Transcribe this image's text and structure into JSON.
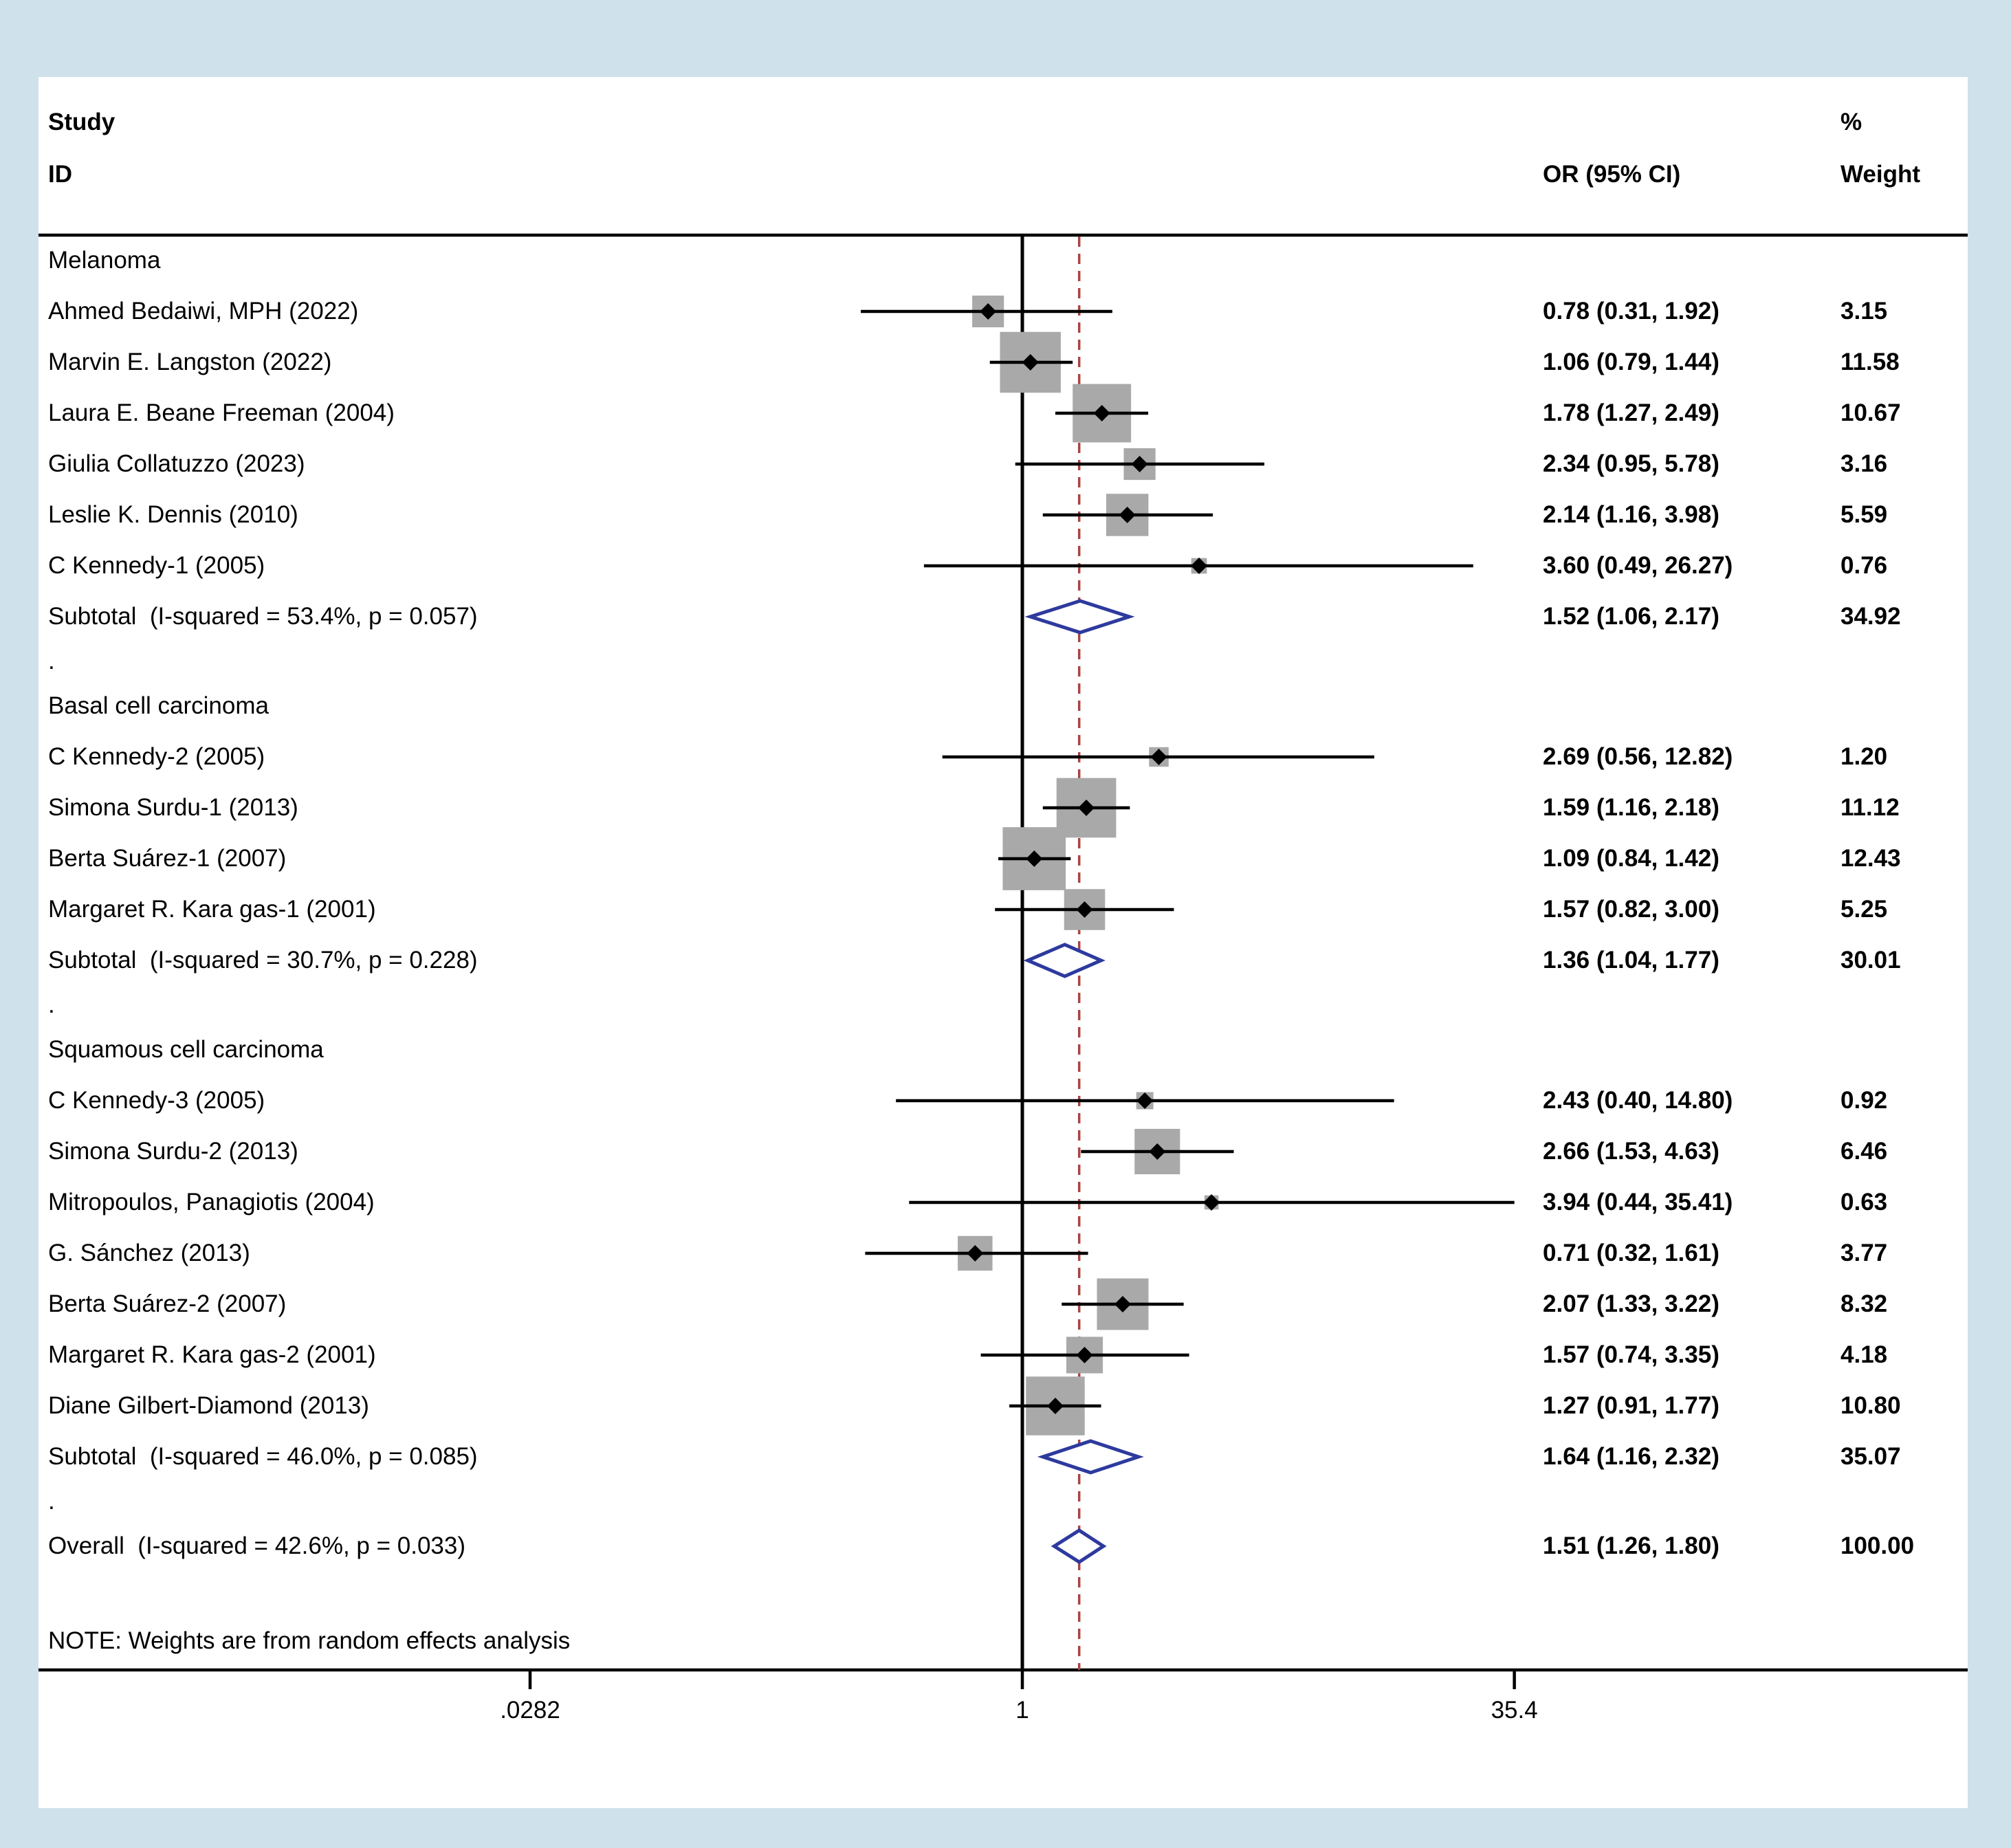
{
  "colors": {
    "background": "#cfe1ea",
    "panel": "#ffffff",
    "text": "#000000",
    "ci_line": "#000000",
    "weight_square": "#a9a9a9",
    "point_marker": "#000000",
    "pooled_diamond": "#2d3a9e",
    "null_line": "#000000",
    "dashed_line": "#a94442"
  },
  "header": {
    "study_line1": "Study",
    "study_line2": "ID",
    "or": "OR (95% CI)",
    "weight_line1": "%",
    "weight_line2": "Weight"
  },
  "separator_label": ".",
  "note": "NOTE: Weights are from random effects analysis",
  "chart_data": {
    "type": "forest",
    "x_scale": "log",
    "effect_measure": "OR",
    "null_line_value": 1,
    "dashed_line_value": 1.51,
    "x_ticks": [
      {
        "label": ".0282",
        "value": 0.0282
      },
      {
        "label": "1",
        "value": 1
      },
      {
        "label": "35.4",
        "value": 35.4
      }
    ],
    "groups": [
      {
        "name": "Melanoma",
        "studies": [
          {
            "label": "Ahmed Bedaiwi, MPH (2022)",
            "or": 0.78,
            "ci_low": 0.31,
            "ci_high": 1.92,
            "or_text": "0.78 (0.31, 1.92)",
            "weight": 3.15,
            "weight_text": "3.15"
          },
          {
            "label": "Marvin E. Langston (2022)",
            "or": 1.06,
            "ci_low": 0.79,
            "ci_high": 1.44,
            "or_text": "1.06 (0.79, 1.44)",
            "weight": 11.58,
            "weight_text": "11.58"
          },
          {
            "label": "Laura E. Beane Freeman (2004)",
            "or": 1.78,
            "ci_low": 1.27,
            "ci_high": 2.49,
            "or_text": "1.78 (1.27, 2.49)",
            "weight": 10.67,
            "weight_text": "10.67"
          },
          {
            "label": "Giulia Collatuzzo (2023)",
            "or": 2.34,
            "ci_low": 0.95,
            "ci_high": 5.78,
            "or_text": "2.34 (0.95, 5.78)",
            "weight": 3.16,
            "weight_text": "3.16"
          },
          {
            "label": "Leslie K. Dennis (2010)",
            "or": 2.14,
            "ci_low": 1.16,
            "ci_high": 3.98,
            "or_text": "2.14 (1.16, 3.98)",
            "weight": 5.59,
            "weight_text": "5.59"
          },
          {
            "label": "C Kennedy-1 (2005)",
            "or": 3.6,
            "ci_low": 0.49,
            "ci_high": 26.27,
            "or_text": "3.60 (0.49, 26.27)",
            "weight": 0.76,
            "weight_text": "0.76"
          }
        ],
        "subtotal": {
          "label": "Subtotal  (I-squared = 53.4%, p = 0.057)",
          "or": 1.52,
          "ci_low": 1.06,
          "ci_high": 2.17,
          "or_text": "1.52 (1.06, 2.17)",
          "weight": 34.92,
          "weight_text": "34.92"
        }
      },
      {
        "name": "Basal cell carcinoma",
        "studies": [
          {
            "label": "C Kennedy-2 (2005)",
            "or": 2.69,
            "ci_low": 0.56,
            "ci_high": 12.82,
            "or_text": "2.69 (0.56, 12.82)",
            "weight": 1.2,
            "weight_text": "1.20"
          },
          {
            "label": "Simona Surdu-1 (2013)",
            "or": 1.59,
            "ci_low": 1.16,
            "ci_high": 2.18,
            "or_text": "1.59 (1.16, 2.18)",
            "weight": 11.12,
            "weight_text": "11.12"
          },
          {
            "label": "Berta Suárez-1 (2007)",
            "or": 1.09,
            "ci_low": 0.84,
            "ci_high": 1.42,
            "or_text": "1.09 (0.84, 1.42)",
            "weight": 12.43,
            "weight_text": "12.43"
          },
          {
            "label": "Margaret R. Kara gas-1 (2001)",
            "or": 1.57,
            "ci_low": 0.82,
            "ci_high": 3.0,
            "or_text": "1.57 (0.82, 3.00)",
            "weight": 5.25,
            "weight_text": "5.25"
          }
        ],
        "subtotal": {
          "label": "Subtotal  (I-squared = 30.7%, p = 0.228)",
          "or": 1.36,
          "ci_low": 1.04,
          "ci_high": 1.77,
          "or_text": "1.36 (1.04, 1.77)",
          "weight": 30.01,
          "weight_text": "30.01"
        }
      },
      {
        "name": "Squamous cell carcinoma",
        "studies": [
          {
            "label": "C Kennedy-3 (2005)",
            "or": 2.43,
            "ci_low": 0.4,
            "ci_high": 14.8,
            "or_text": "2.43 (0.40, 14.80)",
            "weight": 0.92,
            "weight_text": "0.92"
          },
          {
            "label": "Simona Surdu-2 (2013)",
            "or": 2.66,
            "ci_low": 1.53,
            "ci_high": 4.63,
            "or_text": "2.66 (1.53, 4.63)",
            "weight": 6.46,
            "weight_text": "6.46"
          },
          {
            "label": "Mitropoulos, Panagiotis (2004)",
            "or": 3.94,
            "ci_low": 0.44,
            "ci_high": 35.41,
            "or_text": "3.94 (0.44, 35.41)",
            "weight": 0.63,
            "weight_text": "0.63"
          },
          {
            "label": "G. Sánchez (2013)",
            "or": 0.71,
            "ci_low": 0.32,
            "ci_high": 1.61,
            "or_text": "0.71 (0.32, 1.61)",
            "weight": 3.77,
            "weight_text": "3.77"
          },
          {
            "label": "Berta Suárez-2 (2007)",
            "or": 2.07,
            "ci_low": 1.33,
            "ci_high": 3.22,
            "or_text": "2.07 (1.33, 3.22)",
            "weight": 8.32,
            "weight_text": "8.32"
          },
          {
            "label": "Margaret R. Kara gas-2 (2001)",
            "or": 1.57,
            "ci_low": 0.74,
            "ci_high": 3.35,
            "or_text": "1.57 (0.74, 3.35)",
            "weight": 4.18,
            "weight_text": "4.18"
          },
          {
            "label": "Diane Gilbert-Diamond (2013)",
            "or": 1.27,
            "ci_low": 0.91,
            "ci_high": 1.77,
            "or_text": "1.27 (0.91, 1.77)",
            "weight": 10.8,
            "weight_text": "10.80"
          }
        ],
        "subtotal": {
          "label": "Subtotal  (I-squared = 46.0%, p = 0.085)",
          "or": 1.64,
          "ci_low": 1.16,
          "ci_high": 2.32,
          "or_text": "1.64 (1.16, 2.32)",
          "weight": 35.07,
          "weight_text": "35.07"
        }
      }
    ],
    "overall": {
      "label": "Overall  (I-squared = 42.6%, p = 0.033)",
      "or": 1.51,
      "ci_low": 1.26,
      "ci_high": 1.8,
      "or_text": "1.51 (1.26, 1.80)",
      "weight": 100.0,
      "weight_text": "100.00"
    }
  }
}
